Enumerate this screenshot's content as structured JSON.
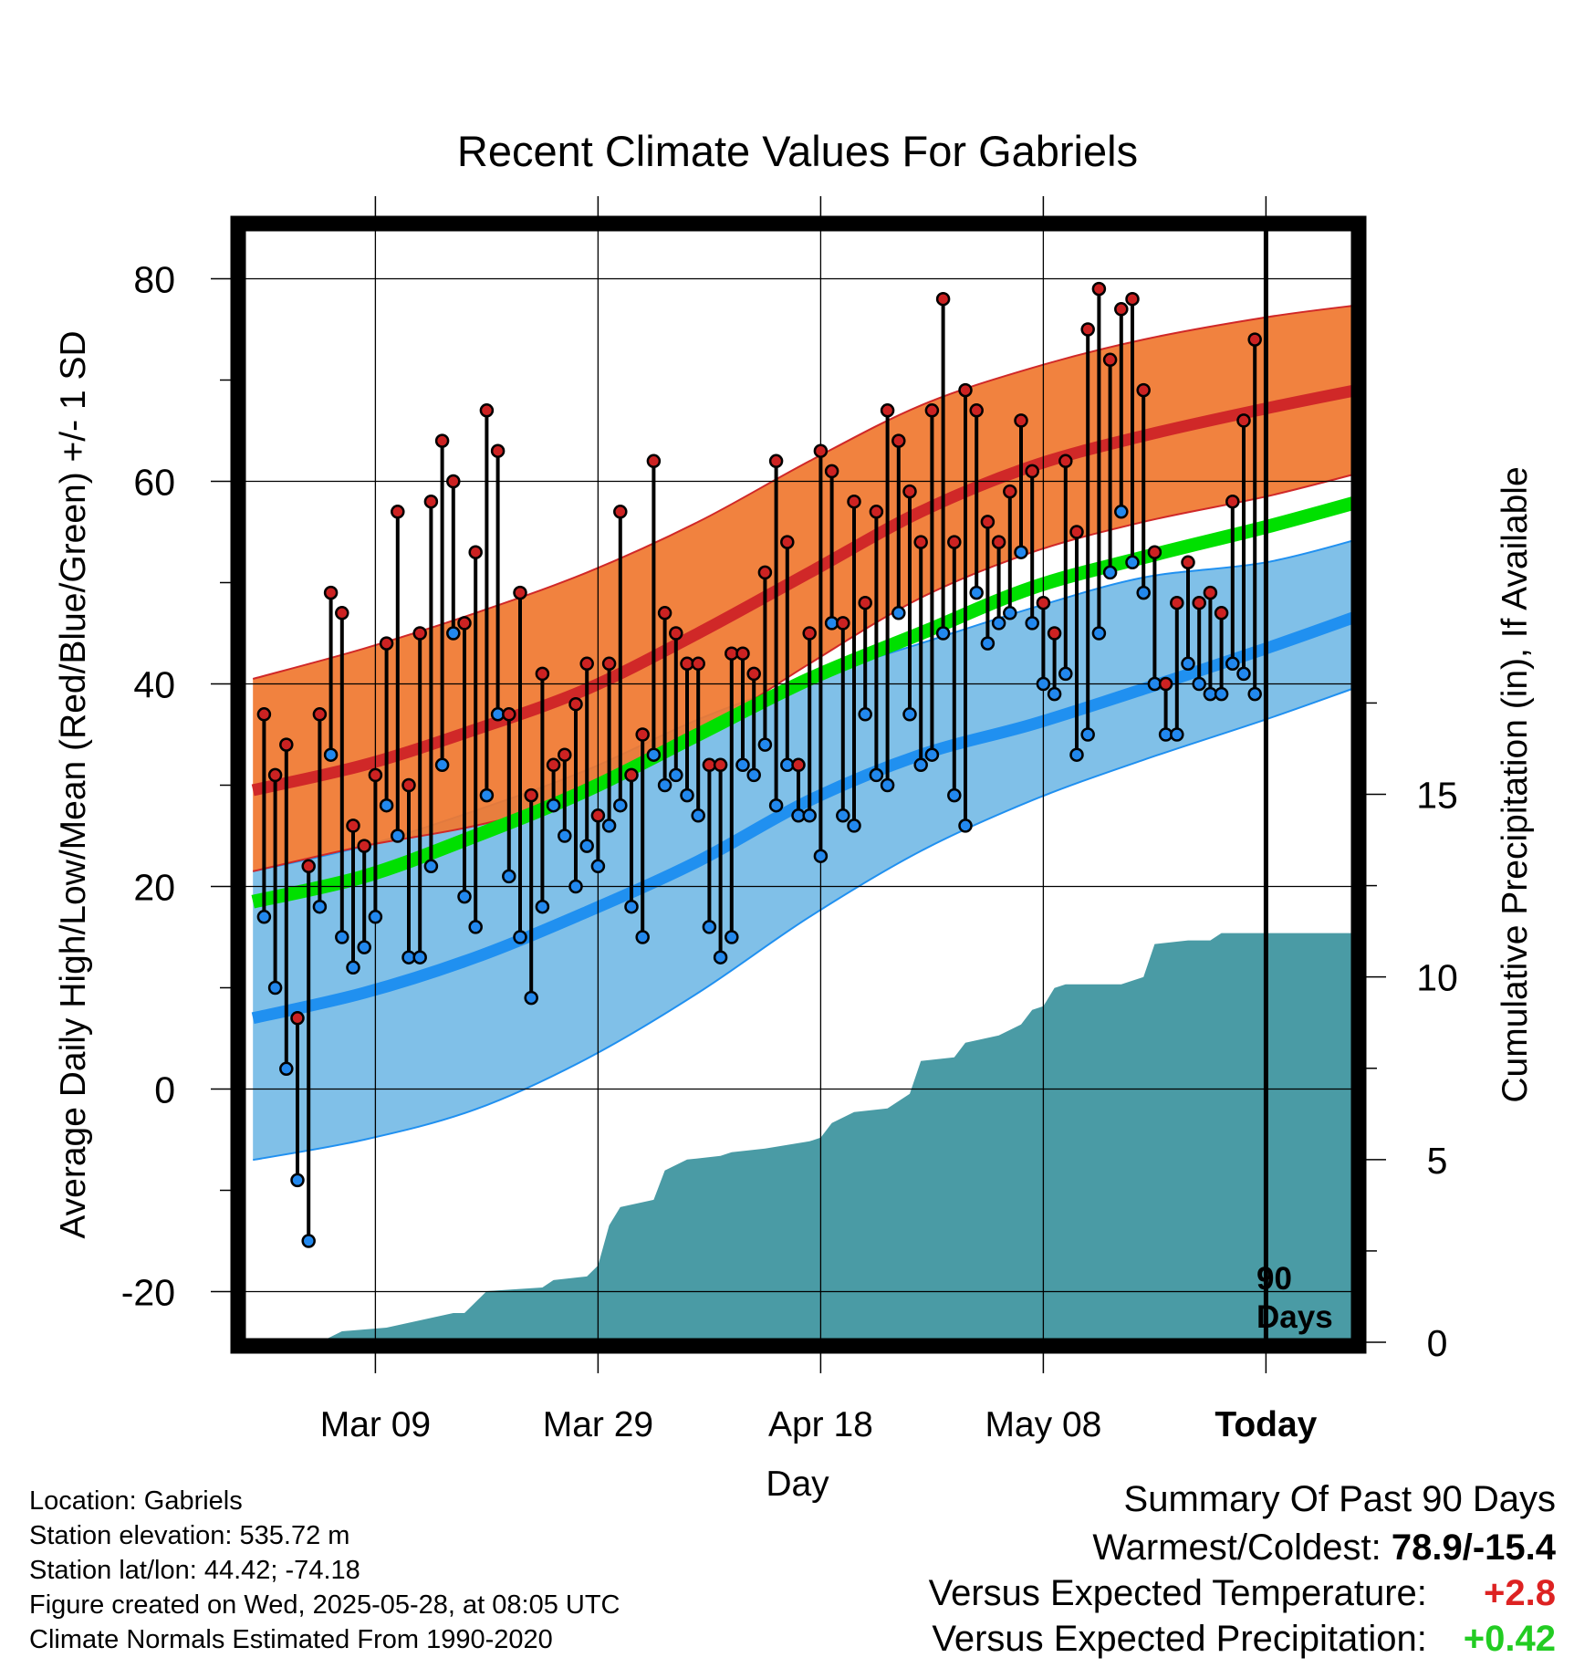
{
  "chart_data": {
    "type": "line",
    "title": "Recent Climate Values For Gabriels",
    "xlabel": "Day",
    "ylabel": "Average Daily High/Low/Mean (Red/Blue/Green) +/- 1 SD",
    "y2label": "Cumulative Precipitation (in), If Available",
    "x_range_days": [
      -92,
      8
    ],
    "ylim": [
      -25,
      85
    ],
    "y2lim": [
      0,
      30.5
    ],
    "yticks": [
      -20,
      0,
      20,
      40,
      60,
      80
    ],
    "y2ticks": [
      0,
      5,
      10,
      15
    ],
    "x_ticks": [
      {
        "day": -80,
        "label": "Mar 09"
      },
      {
        "day": -60,
        "label": "Mar 29"
      },
      {
        "day": -40,
        "label": "Apr 18"
      },
      {
        "day": -20,
        "label": "May 08"
      },
      {
        "day": 0,
        "label": "Today"
      }
    ],
    "grid": true,
    "today_marker": {
      "day": 0,
      "label_line1": "90",
      "label_line2": "Days"
    },
    "colors": {
      "high_band": "#f07830",
      "high_mean": "#d02828",
      "low_band": "#80c0e8",
      "low_mean": "#2090f0",
      "mean": "#00e000",
      "precip": "#4a9ba5",
      "high_point": "#cc2222",
      "low_point": "#2288ee"
    },
    "normals_days": [
      -91,
      -81,
      -71,
      -61,
      -51,
      -41,
      -31,
      -21,
      -11,
      0,
      9
    ],
    "normal_high_mean": [
      29.5,
      32,
      35.5,
      39.5,
      45,
      51,
      57,
      61.5,
      64.5,
      67.2,
      69.2
    ],
    "normal_high_upper": [
      40.5,
      43.5,
      47,
      51,
      56,
      62,
      67.5,
      71.2,
      74,
      76.2,
      77.5
    ],
    "normal_high_lower": [
      21.5,
      24,
      26,
      29,
      35,
      42,
      48.5,
      53,
      56,
      58.5,
      61
    ],
    "normal_low_mean": [
      7,
      9.5,
      13,
      17.5,
      22.5,
      28.5,
      33,
      36,
      39.5,
      43.5,
      47
    ],
    "normal_low_upper": [
      21.5,
      24,
      27.5,
      31.5,
      36.5,
      40.5,
      44,
      47.5,
      50.5,
      52,
      54.5
    ],
    "normal_low_lower": [
      -7,
      -5,
      -2,
      3,
      9.5,
      17,
      23.5,
      28.5,
      32.5,
      36.5,
      40
    ],
    "normal_mean": [
      18.5,
      21,
      25,
      29.5,
      35,
      40.5,
      45,
      49.5,
      52.5,
      55.5,
      58.2
    ],
    "days": [
      -90,
      -89,
      -88,
      -87,
      -86,
      -85,
      -84,
      -83,
      -82,
      -81,
      -80,
      -79,
      -78,
      -77,
      -76,
      -75,
      -74,
      -73,
      -72,
      -71,
      -70,
      -69,
      -68,
      -67,
      -66,
      -65,
      -64,
      -63,
      -62,
      -61,
      -60,
      -59,
      -58,
      -57,
      -56,
      -55,
      -54,
      -53,
      -52,
      -51,
      -50,
      -49,
      -48,
      -47,
      -46,
      -45,
      -44,
      -43,
      -42,
      -41,
      -40,
      -39,
      -38,
      -37,
      -36,
      -35,
      -34,
      -33,
      -32,
      -31,
      -30,
      -29,
      -28,
      -27,
      -26,
      -25,
      -24,
      -23,
      -22,
      -21,
      -20,
      -19,
      -18,
      -17,
      -16,
      -15,
      -14,
      -13,
      -12,
      -11,
      -10,
      -9,
      -8,
      -7,
      -6,
      -5,
      -4,
      -3,
      -2,
      -1
    ],
    "daily_high": [
      37,
      31,
      34,
      7,
      22,
      37,
      49,
      47,
      26,
      24,
      31,
      44,
      57,
      30,
      45,
      58,
      64,
      60,
      46,
      53,
      67,
      63,
      37,
      49,
      29,
      41,
      32,
      33,
      38,
      42,
      27,
      42,
      57,
      31,
      35,
      62,
      47,
      45,
      42,
      42,
      32,
      32,
      43,
      43,
      41,
      51,
      62,
      54,
      32,
      45,
      63,
      61,
      46,
      58,
      48,
      57,
      67,
      64,
      59,
      54,
      67,
      78,
      54,
      69,
      67,
      56,
      54,
      59,
      66,
      61,
      48,
      45,
      62,
      55,
      75,
      79,
      72,
      77,
      78,
      69,
      53,
      40,
      48,
      52,
      48,
      49,
      47,
      58,
      66,
      74
    ],
    "daily_low": [
      17,
      10,
      2,
      -9,
      -15,
      18,
      33,
      15,
      12,
      14,
      17,
      28,
      25,
      13,
      13,
      22,
      32,
      45,
      19,
      16,
      29,
      37,
      21,
      15,
      9,
      18,
      28,
      25,
      20,
      24,
      22,
      26,
      28,
      18,
      15,
      33,
      30,
      31,
      29,
      27,
      16,
      13,
      15,
      32,
      31,
      34,
      28,
      32,
      27,
      27,
      23,
      46,
      27,
      26,
      37,
      31,
      30,
      47,
      37,
      32,
      33,
      45,
      29,
      26,
      49,
      44,
      46,
      47,
      53,
      46,
      40,
      39,
      41,
      33,
      35,
      45,
      51,
      57,
      52,
      49,
      40,
      35,
      35,
      42,
      40,
      39,
      39,
      42,
      41,
      39
    ],
    "precip_days": [
      -91,
      -85,
      -83,
      -79,
      -73,
      -72,
      -70,
      -65,
      -64,
      -61,
      -60,
      -59,
      -58,
      -55,
      -54,
      -52,
      -49,
      -48,
      -45,
      -43,
      -41,
      -40,
      -39,
      -37,
      -34,
      -32,
      -31,
      -28,
      -27,
      -24,
      -22,
      -21,
      -20,
      -19,
      -18,
      -13,
      -11,
      -10,
      -7,
      -5,
      -4,
      -2,
      0,
      8
    ],
    "precip_cum": [
      0,
      0,
      0.3,
      0.4,
      0.8,
      0.8,
      1.4,
      1.5,
      1.7,
      1.8,
      2.1,
      3.2,
      3.7,
      3.9,
      4.7,
      5,
      5.1,
      5.2,
      5.3,
      5.4,
      5.5,
      5.6,
      6,
      6.3,
      6.4,
      6.8,
      7.7,
      7.8,
      8.2,
      8.4,
      8.7,
      9.1,
      9.2,
      9.7,
      9.8,
      9.8,
      10,
      10.9,
      11,
      11,
      11.2,
      11.2,
      11.2,
      11.2
    ]
  },
  "info": {
    "location": "Location: Gabriels",
    "elevation": "Station elevation: 535.72 m",
    "latlon": "Station lat/lon: 44.42; -74.18",
    "created": "Figure created on Wed, 2025-05-28, at 08:05 UTC",
    "normals": "Climate Normals Estimated From 1990-2020"
  },
  "summary": {
    "heading": "Summary Of Past 90 Days",
    "warmest_label": "Warmest/Coldest:",
    "warmest_value": "78.9/-15.4",
    "temp_label": "Versus Expected Temperature:",
    "temp_value": "+2.8",
    "temp_color": "#dd2222",
    "precip_label": "Versus Expected Precipitation:",
    "precip_value": "+0.42",
    "precip_color": "#22cc22"
  }
}
